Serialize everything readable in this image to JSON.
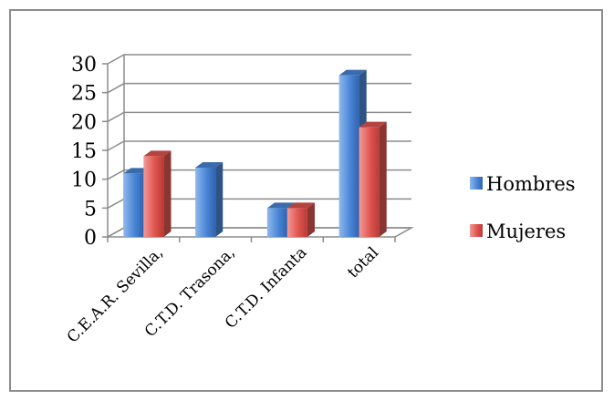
{
  "chart_data": {
    "type": "bar",
    "style": "3d-clustered-column",
    "categories": [
      "C.E.A.R. Sevilla,",
      "C.T.D. Trasona,",
      "C.T.D. Infanta",
      "total"
    ],
    "series": [
      {
        "name": "Hombres",
        "values": [
          11,
          12,
          5,
          28
        ],
        "color": "#4a86d6"
      },
      {
        "name": "Mujeres",
        "values": [
          14,
          0,
          5,
          19
        ],
        "color": "#e05550"
      }
    ],
    "ylim": [
      0,
      30
    ],
    "yticks": [
      0,
      5,
      10,
      15,
      20,
      25,
      30
    ],
    "grid": true,
    "legend": "right"
  }
}
